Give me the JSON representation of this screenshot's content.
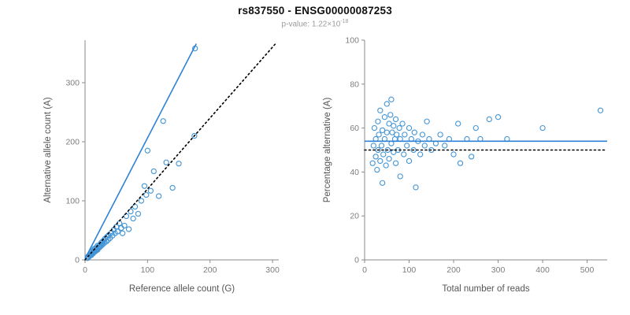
{
  "title": "rs837550 - ENSG00000087253",
  "pvalue": {
    "text": "p-value: 1.22×10",
    "exponent": "-18"
  },
  "colors": {
    "point": "#4395d6",
    "fit_line": "#2e82d6",
    "dotted_line": "#000000",
    "axis": "#8a8a8a",
    "tick_label": "#7d7d7d",
    "axis_label": "#555555"
  },
  "chart_data": [
    {
      "type": "scatter",
      "xlabel": "Reference allele count (G)",
      "ylabel": "Alternative allele count (A)",
      "xlim": [
        0,
        310
      ],
      "ylim": [
        0,
        372
      ],
      "xticks": [
        0,
        100,
        200,
        300
      ],
      "yticks": [
        0,
        100,
        200,
        300
      ],
      "grid": false,
      "points": [
        [
          4,
          3
        ],
        [
          5,
          6
        ],
        [
          6,
          5
        ],
        [
          7,
          8
        ],
        [
          8,
          7
        ],
        [
          9,
          10
        ],
        [
          10,
          8
        ],
        [
          10,
          13
        ],
        [
          11,
          10
        ],
        [
          12,
          12
        ],
        [
          13,
          11
        ],
        [
          13,
          16
        ],
        [
          14,
          13
        ],
        [
          15,
          15
        ],
        [
          15,
          19
        ],
        [
          16,
          14
        ],
        [
          17,
          18
        ],
        [
          18,
          16
        ],
        [
          18,
          21
        ],
        [
          19,
          18
        ],
        [
          20,
          17
        ],
        [
          20,
          24
        ],
        [
          21,
          20
        ],
        [
          22,
          23
        ],
        [
          23,
          21
        ],
        [
          24,
          26
        ],
        [
          25,
          23
        ],
        [
          26,
          29
        ],
        [
          27,
          25
        ],
        [
          28,
          31
        ],
        [
          29,
          27
        ],
        [
          30,
          33
        ],
        [
          31,
          29
        ],
        [
          32,
          36
        ],
        [
          34,
          31
        ],
        [
          35,
          39
        ],
        [
          37,
          34
        ],
        [
          38,
          42
        ],
        [
          40,
          37
        ],
        [
          42,
          46
        ],
        [
          44,
          41
        ],
        [
          46,
          51
        ],
        [
          48,
          45
        ],
        [
          50,
          56
        ],
        [
          52,
          48
        ],
        [
          55,
          62
        ],
        [
          58,
          54
        ],
        [
          60,
          45
        ],
        [
          63,
          58
        ],
        [
          66,
          74
        ],
        [
          70,
          52
        ],
        [
          73,
          82
        ],
        [
          77,
          70
        ],
        [
          80,
          90
        ],
        [
          85,
          78
        ],
        [
          90,
          100
        ],
        [
          95,
          125
        ],
        [
          98,
          110
        ],
        [
          100,
          185
        ],
        [
          105,
          117
        ],
        [
          110,
          150
        ],
        [
          118,
          108
        ],
        [
          125,
          235
        ],
        [
          130,
          165
        ],
        [
          140,
          122
        ],
        [
          150,
          163
        ],
        [
          175,
          210
        ],
        [
          176,
          358
        ]
      ],
      "lines": [
        {
          "name": "fit-line",
          "style": "solid",
          "color": "#2e82d6",
          "points": [
            [
              0,
              2
            ],
            [
              178,
              366
            ]
          ]
        },
        {
          "name": "identity-line",
          "style": "dotted",
          "color": "#000000",
          "points": [
            [
              0,
              0
            ],
            [
              304,
              365
            ]
          ]
        }
      ]
    },
    {
      "type": "scatter",
      "xlabel": "Total number of reads",
      "ylabel": "Percentage alternative (A)",
      "xlim": [
        0,
        545
      ],
      "ylim": [
        0,
        100
      ],
      "xticks": [
        0,
        100,
        200,
        300,
        400,
        500
      ],
      "yticks": [
        0,
        20,
        40,
        60,
        80,
        100
      ],
      "grid": false,
      "points": [
        [
          18,
          44
        ],
        [
          20,
          52
        ],
        [
          22,
          60
        ],
        [
          25,
          47
        ],
        [
          25,
          55
        ],
        [
          28,
          41
        ],
        [
          30,
          50
        ],
        [
          30,
          63
        ],
        [
          32,
          57
        ],
        [
          35,
          45
        ],
        [
          35,
          68
        ],
        [
          38,
          52
        ],
        [
          40,
          59
        ],
        [
          40,
          35
        ],
        [
          42,
          48
        ],
        [
          45,
          65
        ],
        [
          45,
          55
        ],
        [
          48,
          43
        ],
        [
          50,
          71
        ],
        [
          50,
          58
        ],
        [
          52,
          50
        ],
        [
          55,
          62
        ],
        [
          55,
          46
        ],
        [
          58,
          66
        ],
        [
          60,
          53
        ],
        [
          60,
          73
        ],
        [
          62,
          58
        ],
        [
          65,
          49
        ],
        [
          65,
          61
        ],
        [
          68,
          55
        ],
        [
          70,
          44
        ],
        [
          70,
          64
        ],
        [
          72,
          57
        ],
        [
          75,
          50
        ],
        [
          78,
          60
        ],
        [
          80,
          38
        ],
        [
          80,
          55
        ],
        [
          85,
          62
        ],
        [
          88,
          48
        ],
        [
          90,
          57
        ],
        [
          95,
          52
        ],
        [
          100,
          60
        ],
        [
          100,
          45
        ],
        [
          105,
          55
        ],
        [
          110,
          50
        ],
        [
          112,
          58
        ],
        [
          115,
          33
        ],
        [
          120,
          54
        ],
        [
          125,
          48
        ],
        [
          130,
          57
        ],
        [
          135,
          52
        ],
        [
          140,
          63
        ],
        [
          145,
          55
        ],
        [
          150,
          50
        ],
        [
          160,
          53
        ],
        [
          170,
          57
        ],
        [
          180,
          52
        ],
        [
          190,
          55
        ],
        [
          200,
          48
        ],
        [
          210,
          62
        ],
        [
          215,
          44
        ],
        [
          230,
          55
        ],
        [
          240,
          47
        ],
        [
          250,
          60
        ],
        [
          260,
          55
        ],
        [
          280,
          64
        ],
        [
          300,
          65
        ],
        [
          320,
          55
        ],
        [
          400,
          60
        ],
        [
          530,
          68
        ]
      ],
      "lines": [
        {
          "name": "mean-line",
          "style": "solid",
          "color": "#2e82d6",
          "points": [
            [
              0,
              54
            ],
            [
              545,
              54
            ]
          ]
        },
        {
          "name": "null-line",
          "style": "dotted",
          "color": "#000000",
          "points": [
            [
              0,
              50
            ],
            [
              545,
              50
            ]
          ]
        }
      ]
    }
  ]
}
